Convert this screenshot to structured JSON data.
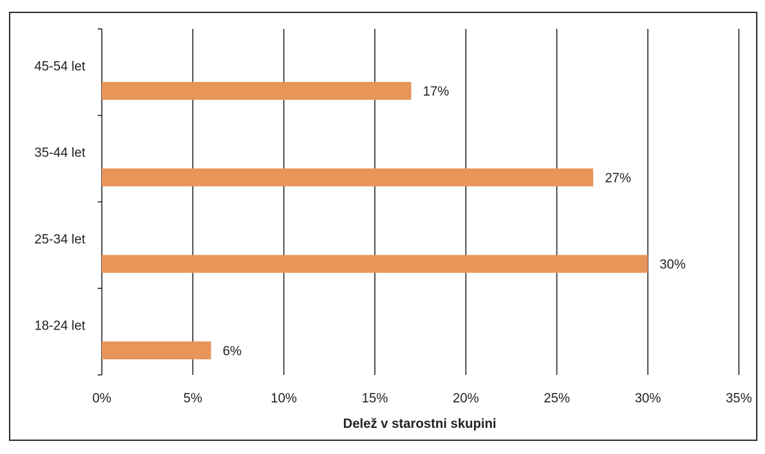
{
  "chart_data": {
    "type": "bar",
    "orientation": "horizontal",
    "categories": [
      "18-24 let",
      "25-34 let",
      "35-44 let",
      "45-54 let"
    ],
    "values": [
      6,
      30,
      27,
      17
    ],
    "data_labels": [
      "6%",
      "30%",
      "27%",
      "17%"
    ],
    "xlabel": "Delež v starostni skupini",
    "ylabel": "",
    "xlim": [
      0,
      35
    ],
    "x_ticks": [
      "0%",
      "5%",
      "10%",
      "15%",
      "20%",
      "25%",
      "30%",
      "35%"
    ],
    "grid": "vertical",
    "legend": "none",
    "bar_color": "#e8955a"
  }
}
